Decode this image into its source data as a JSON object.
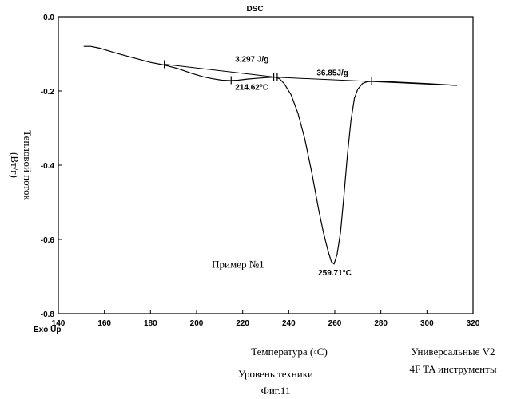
{
  "chart_data": {
    "type": "line",
    "title": "DSC",
    "xlabel": "Температура (◦C)",
    "ylabel": "Тепловой поток (Вт/г)",
    "ylabel_lines": [
      "Тепловой поток",
      "(Вт/г)"
    ],
    "exo_label": "Exo Up",
    "xlim": [
      140,
      320
    ],
    "ylim": [
      -0.8,
      0.0
    ],
    "xticks": [
      140,
      160,
      180,
      200,
      220,
      240,
      260,
      280,
      300,
      320
    ],
    "yticks": [
      0.0,
      -0.2,
      -0.4,
      -0.6,
      -0.8
    ],
    "ytick_labels": [
      "0.0",
      "-0.2",
      "-0.4",
      "-0.6",
      "-0.8"
    ],
    "series": [
      {
        "x": [
          151,
          154,
          158,
          165,
          172,
          180,
          186,
          192,
          198,
          203,
          207,
          211,
          214.6,
          218,
          222,
          226,
          230,
          233,
          234.5,
          236,
          238,
          241,
          244,
          247,
          250,
          253,
          255,
          257,
          258.5,
          259.7,
          261,
          262.5,
          264,
          265.5,
          267,
          268.5,
          270,
          272,
          274,
          276,
          280,
          290,
          300,
          313
        ],
        "y": [
          -0.08,
          -0.08,
          -0.085,
          -0.098,
          -0.11,
          -0.123,
          -0.13,
          -0.14,
          -0.153,
          -0.162,
          -0.167,
          -0.171,
          -0.172,
          -0.171,
          -0.168,
          -0.166,
          -0.164,
          -0.163,
          -0.163,
          -0.167,
          -0.18,
          -0.21,
          -0.26,
          -0.33,
          -0.42,
          -0.52,
          -0.58,
          -0.63,
          -0.66,
          -0.666,
          -0.64,
          -0.58,
          -0.48,
          -0.37,
          -0.28,
          -0.22,
          -0.195,
          -0.18,
          -0.175,
          -0.174,
          -0.174,
          -0.177,
          -0.18,
          -0.185
        ]
      }
    ],
    "baselines": [
      {
        "x": [
          186,
          234.5
        ],
        "y": [
          -0.128,
          -0.163
        ]
      },
      {
        "x": [
          234.5,
          313
        ],
        "y": [
          -0.163,
          -0.185
        ]
      }
    ],
    "markers": [
      {
        "x": 186,
        "y": -0.128
      },
      {
        "x": 215,
        "y": -0.171
      },
      {
        "x": 233.5,
        "y": -0.162
      },
      {
        "x": 235,
        "y": -0.163
      },
      {
        "x": 276,
        "y": -0.174
      }
    ],
    "annotations": [
      {
        "text": "3.297 J/g",
        "x": 224,
        "y": -0.122
      },
      {
        "text": "214.62°C",
        "x": 224,
        "y": -0.197
      },
      {
        "text": "36.85J/g",
        "x": 259,
        "y": -0.158
      },
      {
        "text": "259.71°C",
        "x": 260,
        "y": -0.697
      },
      {
        "text": "Пример №1",
        "x": 218,
        "y": -0.676
      }
    ]
  },
  "footer": {
    "software_line1": "Универсальные V2",
    "software_line2": "4F TA инструменты",
    "caption_line1": "Уровень техники",
    "caption_line2": "Фиг.11"
  }
}
